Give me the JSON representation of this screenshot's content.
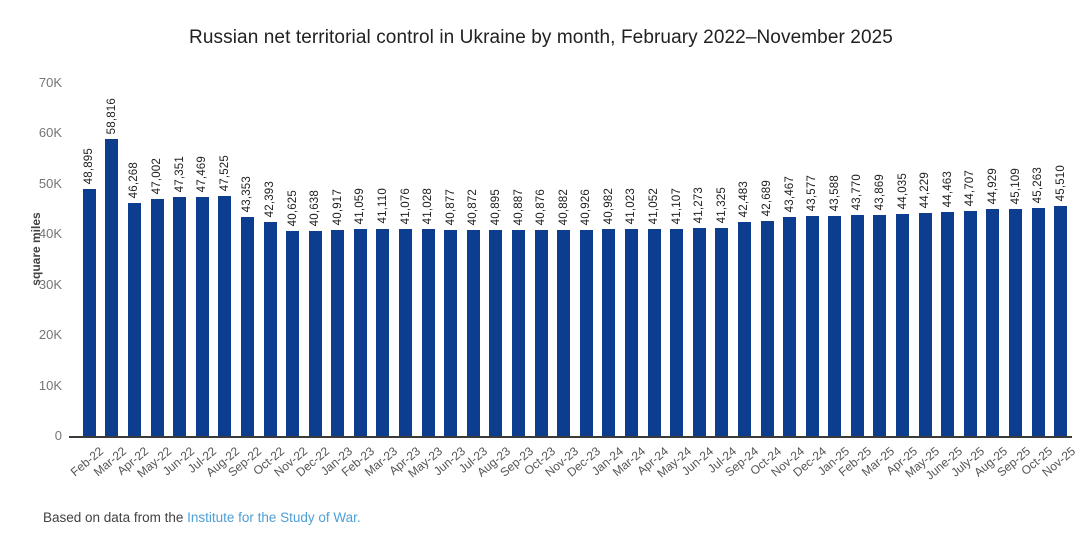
{
  "title": "Russian net territorial control in Ukraine by month, February 2022–November 2025",
  "y_axis": {
    "label": "square miles",
    "ticks": [
      "0",
      "10K",
      "20K",
      "30K",
      "40K",
      "50K",
      "60K",
      "70K"
    ]
  },
  "footer": {
    "prefix": "Based on data from the ",
    "link": "Institute for the Study of War."
  },
  "colors": {
    "bar": "#0d3d8f",
    "link": "#4d9fd6",
    "axis": "#3b3b3b",
    "tick_text": "#757575",
    "value_label_text": "#212121",
    "x_label_text": "#555555"
  },
  "chart_data": {
    "type": "bar",
    "title": "Russian net territorial control in Ukraine by month, February 2022–November 2025",
    "xlabel": "",
    "ylabel": "square miles",
    "ylim": [
      0,
      70000
    ],
    "grid": "off",
    "legend": "none",
    "value_labels": "rotated above bars, comma-formatted",
    "categories": [
      "Feb-22",
      "Mar-22",
      "Apr-22",
      "May-22",
      "Jun-22",
      "Jul-22",
      "Aug-22",
      "Sep-22",
      "Oct-22",
      "Nov-22",
      "Dec-22",
      "Jan-23",
      "Feb-23",
      "Mar-23",
      "Apr-23",
      "May-23",
      "Jun-23",
      "Jul-23",
      "Aug-23",
      "Sep-23",
      "Oct-23",
      "Nov-23",
      "Dec-23",
      "Jan-24",
      "Mar-24",
      "Apr-24",
      "May-24",
      "Jun-24",
      "Jul-24",
      "Sep-24",
      "Oct-24",
      "Nov-24",
      "Dec-24",
      "Jan-25",
      "Feb-25",
      "Mar-25",
      "Apr-25",
      "May-25",
      "June-25",
      "July-25",
      "Aug-25",
      "Sep-25",
      "Oct-25",
      "Nov-25"
    ],
    "values": [
      48895,
      58816,
      46268,
      47002,
      47351,
      47469,
      47525,
      43353,
      42393,
      40625,
      40638,
      40917,
      41059,
      41110,
      41076,
      41028,
      40877,
      40872,
      40895,
      40887,
      40876,
      40882,
      40926,
      40982,
      41023,
      41052,
      41107,
      41273,
      41325,
      42483,
      42689,
      43467,
      43577,
      43588,
      43770,
      43869,
      44035,
      44229,
      44463,
      44707,
      44929,
      45109,
      45263,
      45510
    ]
  }
}
